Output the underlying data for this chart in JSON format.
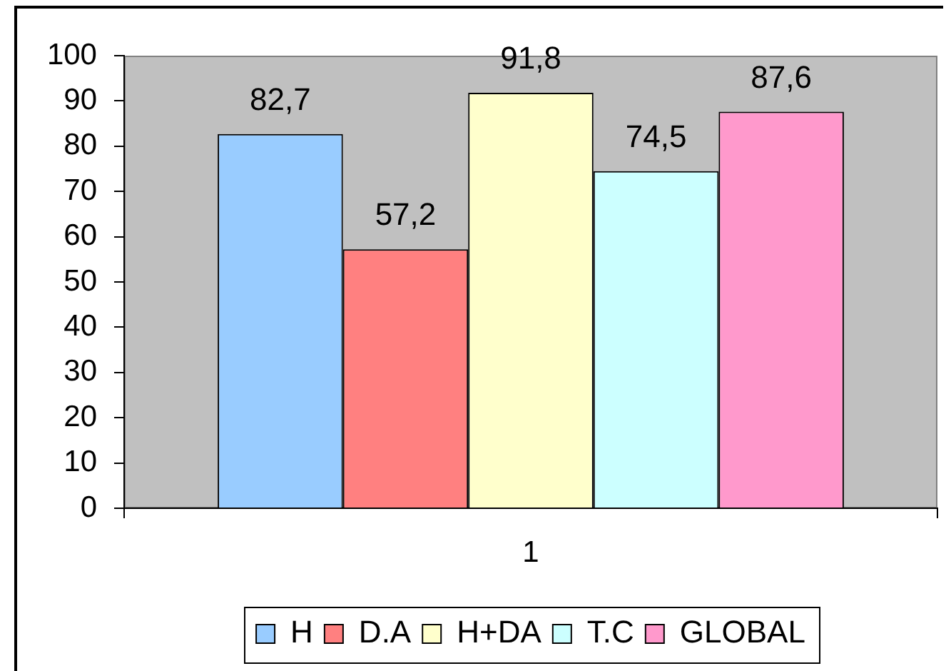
{
  "chart_data": {
    "type": "bar",
    "categories": [
      "1"
    ],
    "series": [
      {
        "name": "H",
        "color": "#99ccff",
        "values": [
          82.7
        ],
        "value_labels": [
          "82,7"
        ]
      },
      {
        "name": "D.A",
        "color": "#ff8080",
        "values": [
          57.2
        ],
        "value_labels": [
          "57,2"
        ]
      },
      {
        "name": "H+DA",
        "color": "#ffffcc",
        "values": [
          91.8
        ],
        "value_labels": [
          "91,8"
        ]
      },
      {
        "name": "T.C",
        "color": "#ccffff",
        "values": [
          74.5
        ],
        "value_labels": [
          "74,5"
        ]
      },
      {
        "name": "GLOBAL",
        "color": "#ff99cc",
        "values": [
          87.6
        ],
        "value_labels": [
          "87,6"
        ]
      }
    ],
    "ylim": [
      0,
      100
    ],
    "yticks": [
      0,
      10,
      20,
      30,
      40,
      50,
      60,
      70,
      80,
      90,
      100
    ],
    "grid": false,
    "legend": "bottom"
  }
}
